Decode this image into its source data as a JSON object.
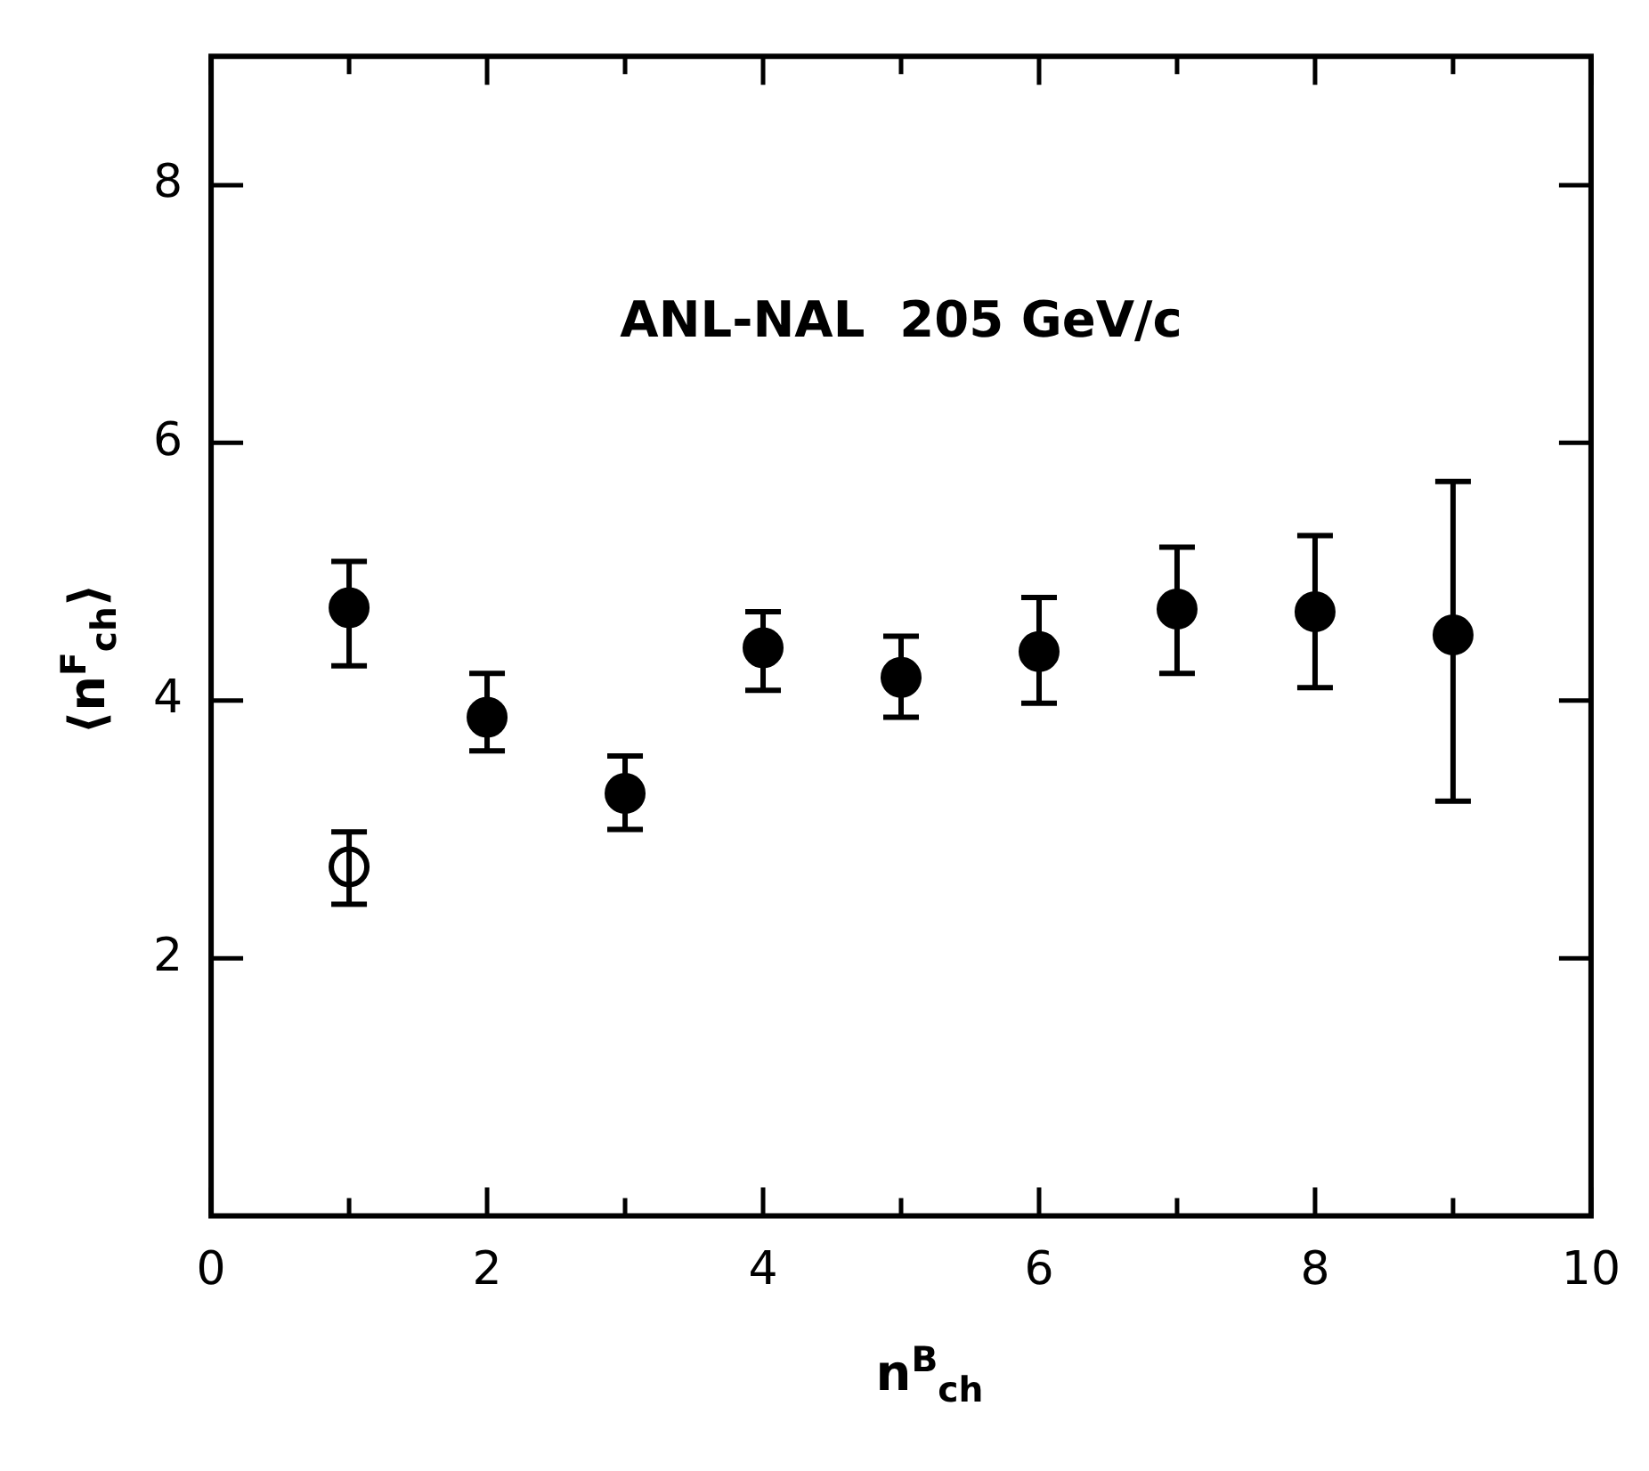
{
  "chart_data": {
    "type": "scatter",
    "xlabel": "n$^{B}$$_{ch}$",
    "ylabel": "⟨n$^{F}$$_{ch}$⟩",
    "annotations": [
      "ANL-NAL  205 GeV/c"
    ],
    "xlim": [
      0,
      10
    ],
    "xticks": [
      0,
      {
        "value": 1,
        "label": null
      },
      2,
      {
        "value": 3,
        "label": null
      },
      4,
      {
        "value": 5,
        "label": null
      },
      6,
      {
        "value": 7,
        "label": null
      },
      8,
      {
        "value": 9,
        "label": null
      },
      10
    ],
    "ylim": [
      0,
      9
    ],
    "yticks": [
      2,
      4,
      6,
      8
    ],
    "marker": "circle",
    "grid": false,
    "legend": false,
    "series": [
      {
        "color": "#000000",
        "x": [
          1,
          2,
          3,
          4,
          5,
          6,
          7,
          8,
          9
        ],
        "values": [
          4.72,
          3.87,
          3.28,
          4.41,
          4.18,
          4.38,
          4.71,
          4.69,
          4.51
        ],
        "errors": [
          [
            4.27,
            5.08
          ],
          [
            3.61,
            4.21
          ],
          [
            3.0,
            3.57
          ],
          [
            4.08,
            4.69
          ],
          [
            3.87,
            4.5
          ],
          [
            3.98,
            4.8
          ],
          [
            4.21,
            5.19
          ],
          [
            4.1,
            5.28
          ],
          [
            3.22,
            5.7
          ]
        ]
      },
      {
        "color": "#ffffff",
        "x": [
          1
        ],
        "values": [
          2.71
        ],
        "errors": [
          [
            2.42,
            2.98
          ]
        ]
      }
    ]
  }
}
